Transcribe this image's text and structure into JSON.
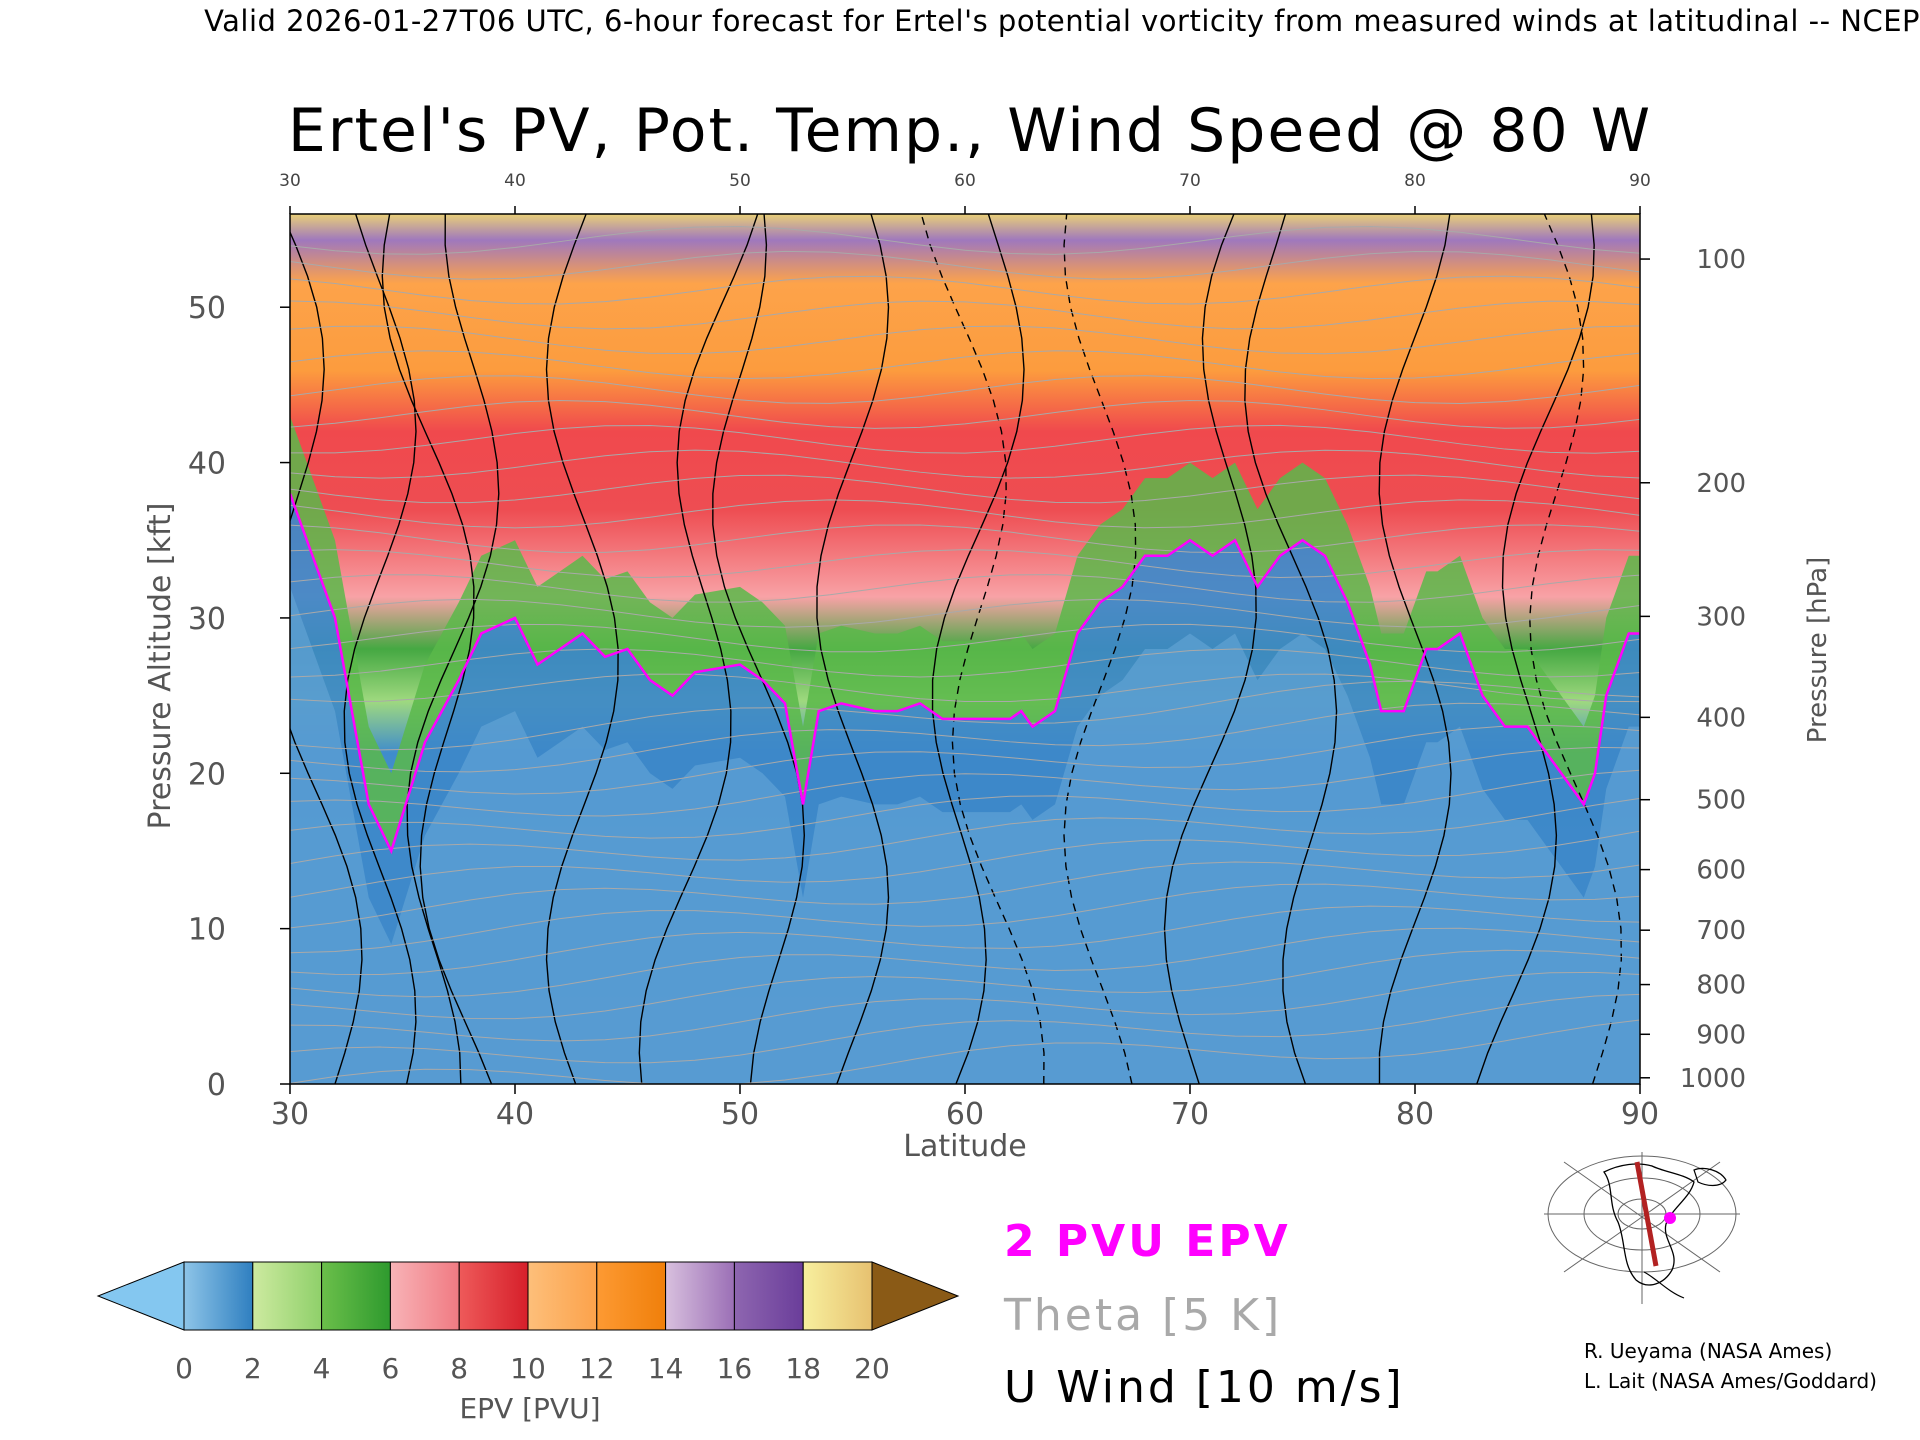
{
  "header": {
    "valid_line": "Valid 2026-01-27T06 UTC, 6-hour forecast for Ertel's potential vorticity from measured winds at latitudinal -- NCEP"
  },
  "chart_data": {
    "type": "heatmap",
    "title": "Ertel's PV, Pot. Temp., Wind Speed @ 80 W",
    "xlabel": "Latitude",
    "ylabel": "Pressure Altitude [kft]",
    "y2label": "Pressure [hPa]",
    "xlim": [
      30,
      90
    ],
    "ylim": [
      0,
      56
    ],
    "x_ticks": [
      30,
      40,
      50,
      60,
      70,
      80,
      90
    ],
    "x_tick_labels": [
      "30",
      "40",
      "50",
      "60",
      "70",
      "80",
      "90"
    ],
    "y_ticks": [
      0,
      10,
      20,
      30,
      40,
      50
    ],
    "y_tick_labels": [
      "0",
      "10",
      "20",
      "30",
      "40",
      "50"
    ],
    "pressure_ticks": [
      {
        "hpa": "100",
        "kft": 53.1
      },
      {
        "hpa": "200",
        "kft": 38.7
      },
      {
        "hpa": "300",
        "kft": 30.1
      },
      {
        "hpa": "400",
        "kft": 23.6
      },
      {
        "hpa": "500",
        "kft": 18.3
      },
      {
        "hpa": "600",
        "kft": 13.8
      },
      {
        "hpa": "700",
        "kft": 9.9
      },
      {
        "hpa": "800",
        "kft": 6.4
      },
      {
        "hpa": "900",
        "kft": 3.2
      },
      {
        "hpa": "1000",
        "kft": 0.4
      }
    ],
    "tropopause_2pvu_kft": [
      [
        30,
        38
      ],
      [
        32,
        30
      ],
      [
        33.5,
        18
      ],
      [
        34.5,
        15
      ],
      [
        36,
        22
      ],
      [
        37.5,
        26
      ],
      [
        38.5,
        29
      ],
      [
        40,
        30
      ],
      [
        41,
        27
      ],
      [
        42,
        28
      ],
      [
        43,
        29
      ],
      [
        44,
        27.5
      ],
      [
        45,
        28
      ],
      [
        46,
        26
      ],
      [
        47,
        25
      ],
      [
        48,
        26.5
      ],
      [
        50,
        27
      ],
      [
        51,
        26
      ],
      [
        52,
        24.5
      ],
      [
        52.8,
        18
      ],
      [
        53.5,
        24
      ],
      [
        54.5,
        24.5
      ],
      [
        56,
        24
      ],
      [
        57,
        24
      ],
      [
        58,
        24.5
      ],
      [
        59,
        23.5
      ],
      [
        60,
        23.5
      ],
      [
        62,
        23.5
      ],
      [
        62.5,
        24
      ],
      [
        63,
        23
      ],
      [
        64,
        24
      ],
      [
        65,
        29
      ],
      [
        66,
        31
      ],
      [
        67,
        32
      ],
      [
        68,
        34
      ],
      [
        69,
        34
      ],
      [
        70,
        35
      ],
      [
        71,
        34
      ],
      [
        72,
        35
      ],
      [
        73,
        32
      ],
      [
        74,
        34
      ],
      [
        75,
        35
      ],
      [
        76,
        34
      ],
      [
        77,
        31
      ],
      [
        78,
        27
      ],
      [
        78.5,
        24
      ],
      [
        79.5,
        24
      ],
      [
        80.5,
        28
      ],
      [
        81,
        28
      ],
      [
        82,
        29
      ],
      [
        83,
        25
      ],
      [
        84,
        23
      ],
      [
        85,
        23
      ],
      [
        86,
        21
      ],
      [
        86.5,
        20
      ],
      [
        87.5,
        18
      ],
      [
        88,
        20
      ],
      [
        88.5,
        25
      ],
      [
        89.5,
        29
      ],
      [
        90,
        29
      ]
    ],
    "colorbar": {
      "label": "EPV [PVU]",
      "ticks": [
        "0",
        "2",
        "4",
        "6",
        "8",
        "10",
        "12",
        "14",
        "16",
        "18",
        "20"
      ],
      "bins": [
        {
          "range": [
            0,
            2
          ],
          "colors": [
            "#8ec5e8",
            "#2f7fc0"
          ]
        },
        {
          "range": [
            2,
            4
          ],
          "colors": [
            "#cdeaa0",
            "#8fd06a"
          ]
        },
        {
          "range": [
            4,
            6
          ],
          "colors": [
            "#6bbf4a",
            "#2e9a2e"
          ]
        },
        {
          "range": [
            6,
            8
          ],
          "colors": [
            "#f8b3b7",
            "#f07a82"
          ]
        },
        {
          "range": [
            8,
            10
          ],
          "colors": [
            "#ee5a5a",
            "#d61f2a"
          ]
        },
        {
          "range": [
            10,
            12
          ],
          "colors": [
            "#fdbf7a",
            "#fca24b"
          ]
        },
        {
          "range": [
            12,
            14
          ],
          "colors": [
            "#fd9a33",
            "#f07f0a"
          ]
        },
        {
          "range": [
            14,
            16
          ],
          "colors": [
            "#d8c0de",
            "#9b6fb6"
          ]
        },
        {
          "range": [
            16,
            18
          ],
          "colors": [
            "#8e66b0",
            "#6a3d9a"
          ]
        },
        {
          "range": [
            18,
            20
          ],
          "colors": [
            "#f7ef9e",
            "#e7c170"
          ]
        }
      ],
      "under_color": "#84c7f0",
      "over_color": "#8a5a16"
    },
    "legend": {
      "pvu": "2 PVU EPV",
      "theta": "Theta [5 K]",
      "wind": "U Wind [10 m/s]"
    },
    "colors": {
      "pvu_line": "#ff00ff",
      "theta_line": "#a9a9a9",
      "wind_line": "#000000",
      "section_line": "#b22222"
    }
  },
  "credits": {
    "line1": "R. Ueyama (NASA Ames)",
    "line2": "L. Lait (NASA Ames/Goddard)"
  }
}
